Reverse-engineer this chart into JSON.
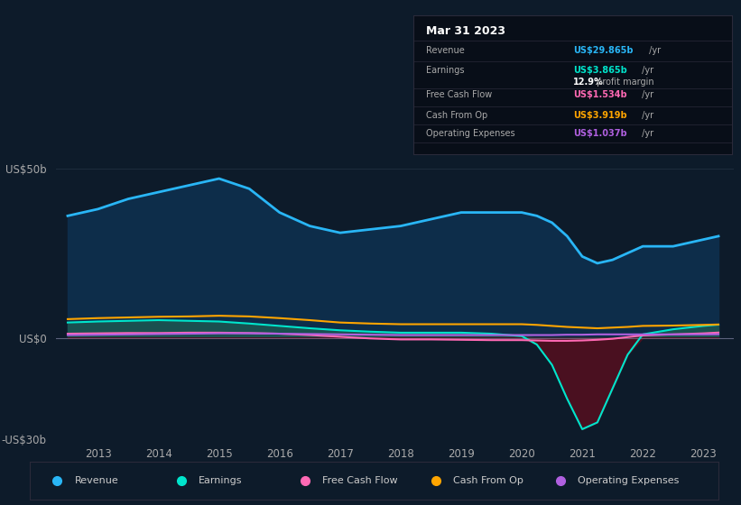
{
  "background_color": "#0d1b2a",
  "plot_bg_color": "#0d1b2a",
  "ylabel_top": "US$50b",
  "ylabel_zero": "US$0",
  "ylabel_bottom": "-US$30b",
  "years": [
    2012.5,
    2013.0,
    2013.5,
    2014.0,
    2014.5,
    2015.0,
    2015.5,
    2016.0,
    2016.5,
    2017.0,
    2017.5,
    2018.0,
    2018.5,
    2019.0,
    2019.5,
    2020.0,
    2020.25,
    2020.5,
    2020.75,
    2021.0,
    2021.25,
    2021.5,
    2021.75,
    2022.0,
    2022.5,
    2023.0,
    2023.25
  ],
  "revenue": [
    36,
    38,
    41,
    43,
    45,
    47,
    44,
    37,
    33,
    31,
    32,
    33,
    35,
    37,
    37,
    37,
    36,
    34,
    30,
    24,
    22,
    23,
    25,
    27,
    27,
    29,
    30
  ],
  "earnings": [
    4.5,
    4.8,
    5.0,
    5.2,
    5.0,
    4.8,
    4.2,
    3.5,
    2.8,
    2.2,
    1.8,
    1.5,
    1.5,
    1.5,
    1.2,
    0.5,
    -2.0,
    -8.0,
    -18.0,
    -27.0,
    -25.0,
    -15.0,
    -5.0,
    1.0,
    2.5,
    3.5,
    3.865
  ],
  "free_cash_flow": [
    1.2,
    1.3,
    1.4,
    1.4,
    1.5,
    1.5,
    1.4,
    1.2,
    0.8,
    0.3,
    -0.2,
    -0.5,
    -0.5,
    -0.6,
    -0.7,
    -0.7,
    -0.8,
    -0.9,
    -0.9,
    -0.8,
    -0.6,
    -0.3,
    0.2,
    0.7,
    1.0,
    1.3,
    1.534
  ],
  "cash_from_op": [
    5.5,
    5.8,
    6.0,
    6.2,
    6.3,
    6.5,
    6.3,
    5.8,
    5.2,
    4.5,
    4.2,
    4.0,
    4.0,
    4.0,
    4.0,
    4.0,
    3.8,
    3.5,
    3.2,
    3.0,
    2.8,
    3.0,
    3.2,
    3.5,
    3.6,
    3.8,
    3.919
  ],
  "operating_expenses": [
    0.8,
    0.9,
    1.0,
    1.1,
    1.2,
    1.3,
    1.3,
    1.2,
    1.1,
    1.0,
    0.9,
    0.8,
    0.8,
    0.8,
    0.8,
    0.8,
    0.8,
    0.8,
    0.9,
    0.9,
    1.0,
    1.0,
    1.0,
    1.0,
    1.0,
    1.0,
    1.037
  ],
  "revenue_color": "#29b6f6",
  "earnings_color": "#00e5cc",
  "free_cash_flow_color": "#ff69b4",
  "cash_from_op_color": "#ffa500",
  "operating_expenses_color": "#b060e0",
  "earnings_pos_fill": "#1a5050",
  "earnings_neg_fill": "#4a1020",
  "revenue_fill": "#0d2d4a",
  "grid_color": "#1e2d3d",
  "zero_line_color": "#8888aa",
  "text_color": "#aaaaaa",
  "tooltip_bg": "#080e18",
  "tooltip_border": "#2a2a3a",
  "legend_bg": "#0d1b2a",
  "legend_border": "#2a2a3a",
  "x_ticks": [
    2013,
    2014,
    2015,
    2016,
    2017,
    2018,
    2019,
    2020,
    2021,
    2022,
    2023
  ],
  "ylim": [
    -30,
    55
  ],
  "xlim": [
    2012.3,
    2023.5
  ],
  "tooltip_title": "Mar 31 2023",
  "tooltip_rows": [
    {
      "label": "Revenue",
      "value": "US$29.865b",
      "unit": " /yr",
      "color": "#29b6f6"
    },
    {
      "label": "Earnings",
      "value": "US$3.865b",
      "unit": " /yr",
      "color": "#00e5cc"
    },
    {
      "label": "",
      "value": "12.9%",
      "unit": " profit margin",
      "color": "#ffffff",
      "unit_color": "#aaaaaa"
    },
    {
      "label": "Free Cash Flow",
      "value": "US$1.534b",
      "unit": " /yr",
      "color": "#ff69b4"
    },
    {
      "label": "Cash From Op",
      "value": "US$3.919b",
      "unit": " /yr",
      "color": "#ffa500"
    },
    {
      "label": "Operating Expenses",
      "value": "US$1.037b",
      "unit": " /yr",
      "color": "#b060e0"
    }
  ],
  "legend_items": [
    {
      "label": "Revenue",
      "color": "#29b6f6"
    },
    {
      "label": "Earnings",
      "color": "#00e5cc"
    },
    {
      "label": "Free Cash Flow",
      "color": "#ff69b4"
    },
    {
      "label": "Cash From Op",
      "color": "#ffa500"
    },
    {
      "label": "Operating Expenses",
      "color": "#b060e0"
    }
  ]
}
